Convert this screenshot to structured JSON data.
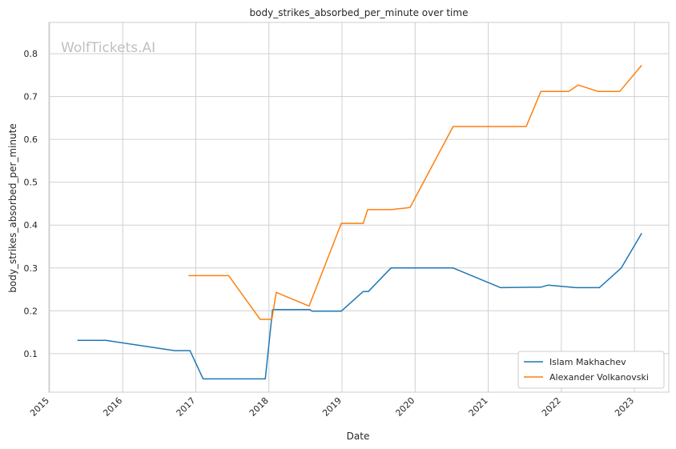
{
  "chart_data": {
    "type": "line",
    "title": "body_strikes_absorbed_per_minute over time",
    "xlabel": "Date",
    "ylabel": "body_strikes_absorbed_per_minute",
    "watermark": "WolfTickets.AI",
    "x_ticks": [
      "2015",
      "2016",
      "2017",
      "2018",
      "2019",
      "2020",
      "2021",
      "2022",
      "2023"
    ],
    "y_ticks": [
      "0.1",
      "0.2",
      "0.3",
      "0.4",
      "0.5",
      "0.6",
      "0.7",
      "0.8"
    ],
    "xlim": [
      2014.99,
      2023.47
    ],
    "ylim": [
      0.01,
      0.873
    ],
    "grid": true,
    "legend_position": "bottom-right",
    "series": [
      {
        "name": "Islam Makhachev",
        "color": "#1f77b4",
        "x": [
          2015.38,
          2015.77,
          2016.71,
          2016.92,
          2017.1,
          2017.95,
          2018.05,
          2018.56,
          2018.59,
          2018.99,
          2019.29,
          2019.36,
          2019.67,
          2020.52,
          2021.17,
          2021.72,
          2021.82,
          2022.2,
          2022.52,
          2022.82,
          2023.1
        ],
        "y": [
          0.131,
          0.131,
          0.107,
          0.107,
          0.041,
          0.041,
          0.203,
          0.203,
          0.199,
          0.199,
          0.245,
          0.245,
          0.3,
          0.3,
          0.254,
          0.255,
          0.26,
          0.254,
          0.254,
          0.3,
          0.381
        ]
      },
      {
        "name": "Alexander Volkanovski",
        "color": "#ff7f0e",
        "x": [
          2016.9,
          2017.45,
          2017.88,
          2018.04,
          2018.1,
          2018.55,
          2018.99,
          2019.29,
          2019.35,
          2019.67,
          2019.93,
          2020.52,
          2021.52,
          2021.72,
          2022.1,
          2022.23,
          2022.5,
          2022.8,
          2023.1
        ],
        "y": [
          0.282,
          0.282,
          0.18,
          0.18,
          0.243,
          0.211,
          0.404,
          0.404,
          0.436,
          0.436,
          0.441,
          0.63,
          0.63,
          0.712,
          0.712,
          0.727,
          0.712,
          0.712,
          0.773
        ]
      }
    ]
  }
}
